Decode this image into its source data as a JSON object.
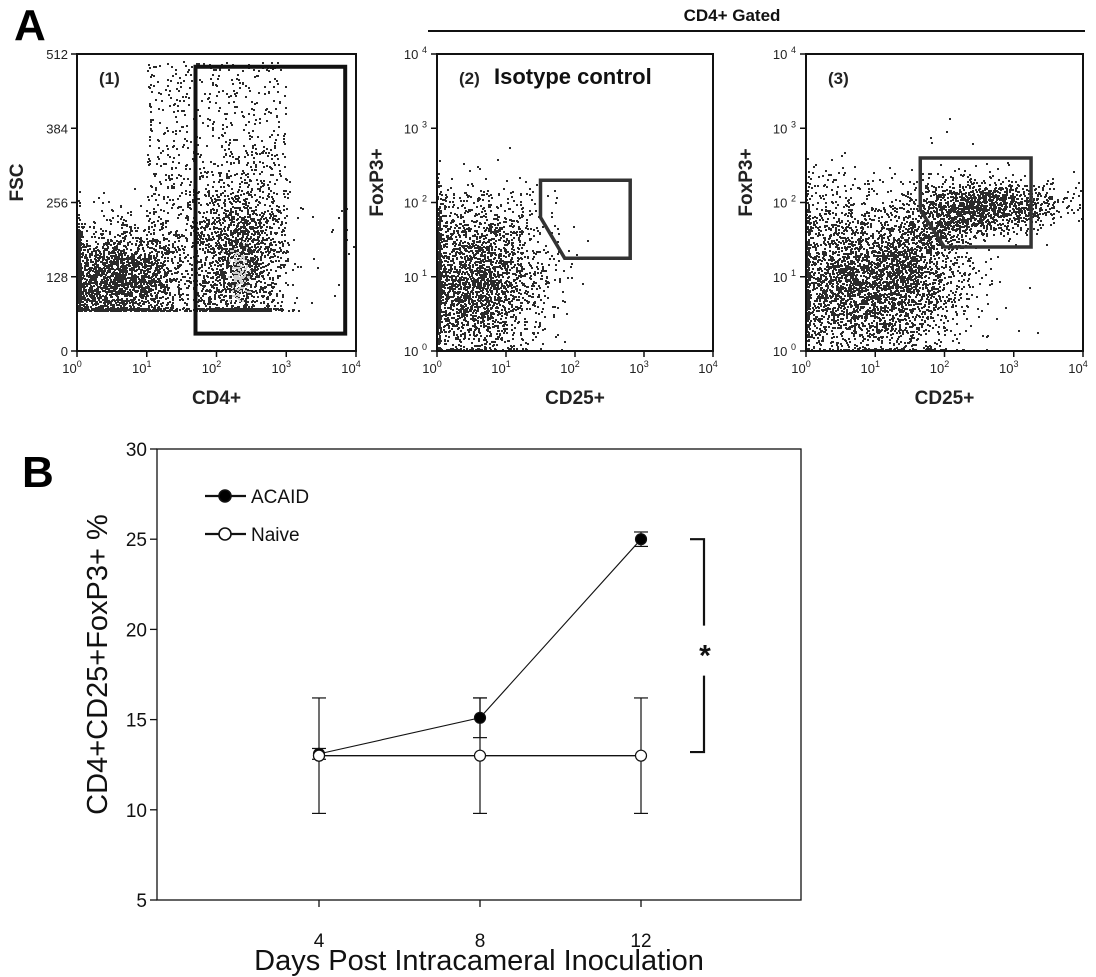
{
  "figure": {
    "panel_a_letter": "A",
    "panel_b_letter": "B",
    "gated_header": "CD4+ Gated"
  },
  "chart_data": [
    {
      "type": "scatter",
      "id": "flow-1",
      "panel_label": "(1)",
      "title": "",
      "xlabel": "CD4+",
      "ylabel": "FSC",
      "x_scale": "log",
      "xlim": [
        1,
        10000
      ],
      "x_ticks": [
        {
          "base": "10",
          "exp": "0"
        },
        {
          "base": "10",
          "exp": "1"
        },
        {
          "base": "10",
          "exp": "2"
        },
        {
          "base": "10",
          "exp": "3"
        },
        {
          "base": "10",
          "exp": "4"
        }
      ],
      "y_scale": "linear",
      "ylim": [
        0,
        512
      ],
      "y_ticks": [
        "0",
        "128",
        "256",
        "384",
        "512"
      ],
      "gate": {
        "shape": "rectangle",
        "x_range": [
          50,
          7000
        ],
        "y_range": [
          30,
          490
        ]
      },
      "populations": [
        {
          "name": "CD4-negative",
          "x_center_log": 0.6,
          "y_center": 125,
          "note": "dense cluster"
        },
        {
          "name": "CD4-positive",
          "x_center_log": 2.35,
          "y_center": 130,
          "note": "bright dense cluster inside gate"
        }
      ]
    },
    {
      "type": "scatter",
      "id": "flow-2",
      "panel_label": "(2)",
      "title": "Isotype control",
      "xlabel": "CD25+",
      "ylabel": "FoxP3+",
      "x_scale": "log",
      "xlim": [
        1,
        10000
      ],
      "x_ticks": [
        {
          "base": "10",
          "exp": "0"
        },
        {
          "base": "10",
          "exp": "1"
        },
        {
          "base": "10",
          "exp": "2"
        },
        {
          "base": "10",
          "exp": "3"
        },
        {
          "base": "10",
          "exp": "4"
        }
      ],
      "y_scale": "log",
      "ylim": [
        1,
        10000
      ],
      "y_ticks": [
        {
          "base": "10",
          "exp": "0"
        },
        {
          "base": "10",
          "exp": "1"
        },
        {
          "base": "10",
          "exp": "2"
        },
        {
          "base": "10",
          "exp": "3"
        },
        {
          "base": "10",
          "exp": "4"
        }
      ],
      "gate": {
        "shape": "polygon",
        "points_log": [
          [
            1.5,
            2.3
          ],
          [
            2.8,
            2.3
          ],
          [
            2.8,
            1.25
          ],
          [
            1.85,
            1.25
          ],
          [
            1.5,
            1.8
          ]
        ]
      },
      "populations": [
        {
          "name": "isotype",
          "x_center_log": 0.6,
          "y_center_log": 0.9,
          "note": "dense cluster near origin"
        }
      ]
    },
    {
      "type": "scatter",
      "id": "flow-3",
      "panel_label": "(3)",
      "title": "",
      "xlabel": "CD25+",
      "ylabel": "FoxP3+",
      "x_scale": "log",
      "xlim": [
        1,
        10000
      ],
      "x_ticks": [
        {
          "base": "10",
          "exp": "0"
        },
        {
          "base": "10",
          "exp": "1"
        },
        {
          "base": "10",
          "exp": "2"
        },
        {
          "base": "10",
          "exp": "3"
        },
        {
          "base": "10",
          "exp": "4"
        }
      ],
      "y_scale": "log",
      "ylim": [
        1,
        10000
      ],
      "y_ticks": [
        {
          "base": "10",
          "exp": "0"
        },
        {
          "base": "10",
          "exp": "1"
        },
        {
          "base": "10",
          "exp": "2"
        },
        {
          "base": "10",
          "exp": "3"
        },
        {
          "base": "10",
          "exp": "4"
        }
      ],
      "gate": {
        "shape": "polygon",
        "points_log": [
          [
            1.65,
            2.6
          ],
          [
            3.25,
            2.6
          ],
          [
            3.25,
            1.4
          ],
          [
            2.0,
            1.4
          ],
          [
            1.65,
            1.9
          ]
        ]
      },
      "populations": [
        {
          "name": "CD25-negative",
          "x_center_log": 1.1,
          "y_center_log": 1.0,
          "note": "dense cluster"
        },
        {
          "name": "CD25+FoxP3+",
          "x_center_log": 2.5,
          "y_center_log": 2.0,
          "note": "cluster inside gate"
        }
      ]
    },
    {
      "type": "line",
      "id": "line-b",
      "title": "",
      "xlabel": "Days Post Intracameral Inoculation",
      "ylabel": "CD4+CD25+FoxP3+ %",
      "x": [
        4,
        8,
        12
      ],
      "x_tick_labels": [
        "4",
        "8",
        "12"
      ],
      "xlim": [
        0,
        16
      ],
      "ylim": [
        5,
        30
      ],
      "y_ticks": [
        "5",
        "10",
        "15",
        "20",
        "25",
        "30"
      ],
      "grid": false,
      "legend_position": "top-left",
      "series": [
        {
          "name": "ACAID",
          "marker": "filled-circle",
          "values": [
            13.1,
            15.1,
            25.0
          ],
          "errors": [
            0.3,
            1.1,
            0.4
          ]
        },
        {
          "name": "Naive",
          "marker": "open-circle",
          "values": [
            13.0,
            13.0,
            13.0
          ],
          "errors": [
            3.2,
            3.2,
            3.2
          ]
        }
      ],
      "significance": {
        "label": "*",
        "between": [
          "ACAID",
          "Naive"
        ],
        "at_x": 12,
        "y_range": [
          13.2,
          25.0
        ]
      }
    }
  ]
}
